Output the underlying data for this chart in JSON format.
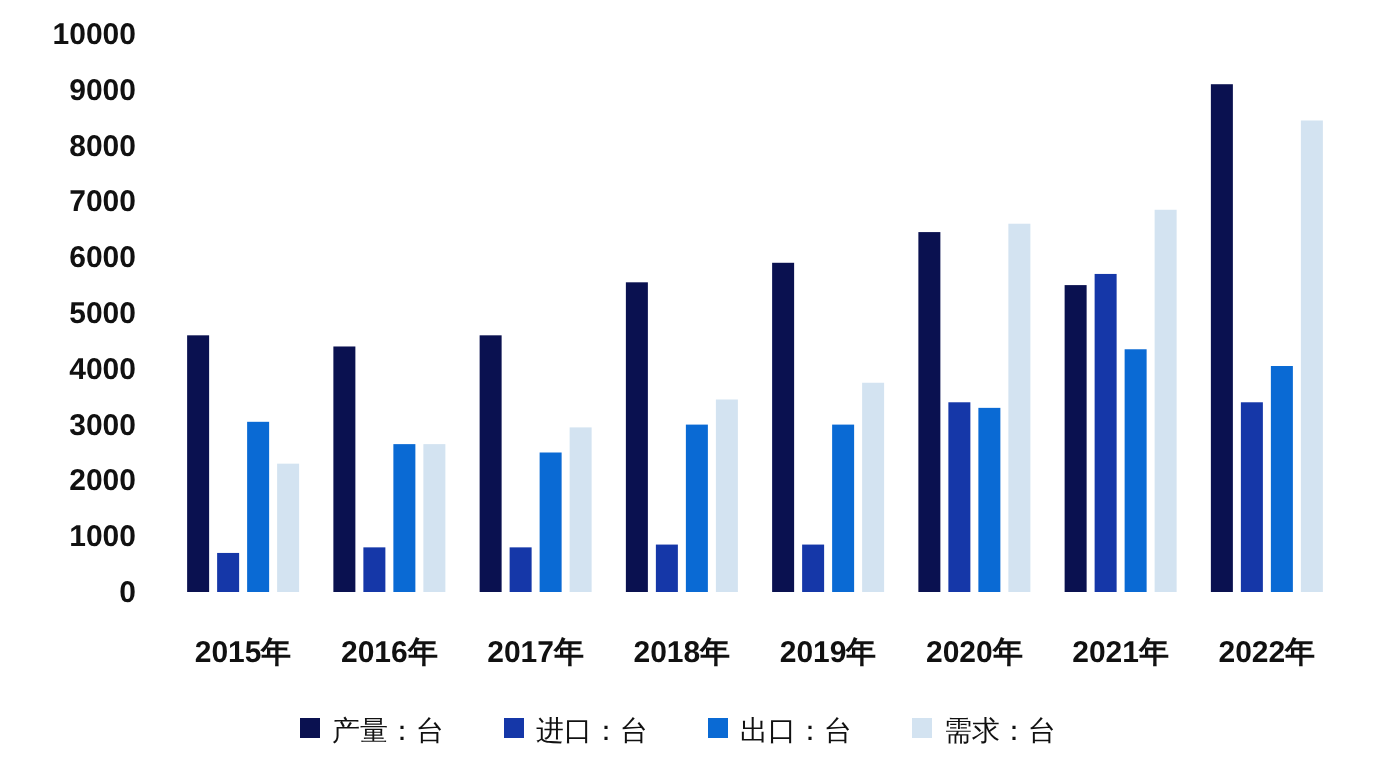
{
  "chart_data": {
    "type": "bar",
    "categories": [
      "2015年",
      "2016年",
      "2017年",
      "2018年",
      "2019年",
      "2020年",
      "2021年",
      "2022年"
    ],
    "series": [
      {
        "name": "产量：台",
        "color": "#0a1150",
        "values": [
          4600,
          4400,
          4600,
          5550,
          5900,
          6450,
          5500,
          9100
        ]
      },
      {
        "name": "进口：台",
        "color": "#1537a8",
        "values": [
          700,
          800,
          800,
          850,
          850,
          3400,
          5700,
          3400
        ]
      },
      {
        "name": "出口：台",
        "color": "#0a6ad4",
        "values": [
          3050,
          2650,
          2500,
          3000,
          3000,
          3300,
          4350,
          4050
        ]
      },
      {
        "name": "需求：台",
        "color": "#d3e3f1",
        "values": [
          2300,
          2650,
          2950,
          3450,
          3750,
          6600,
          6850,
          8450
        ]
      }
    ],
    "ylim": [
      0,
      10000
    ],
    "yticks": [
      0,
      1000,
      2000,
      3000,
      4000,
      5000,
      6000,
      7000,
      8000,
      9000,
      10000
    ],
    "legend": "bottom"
  }
}
